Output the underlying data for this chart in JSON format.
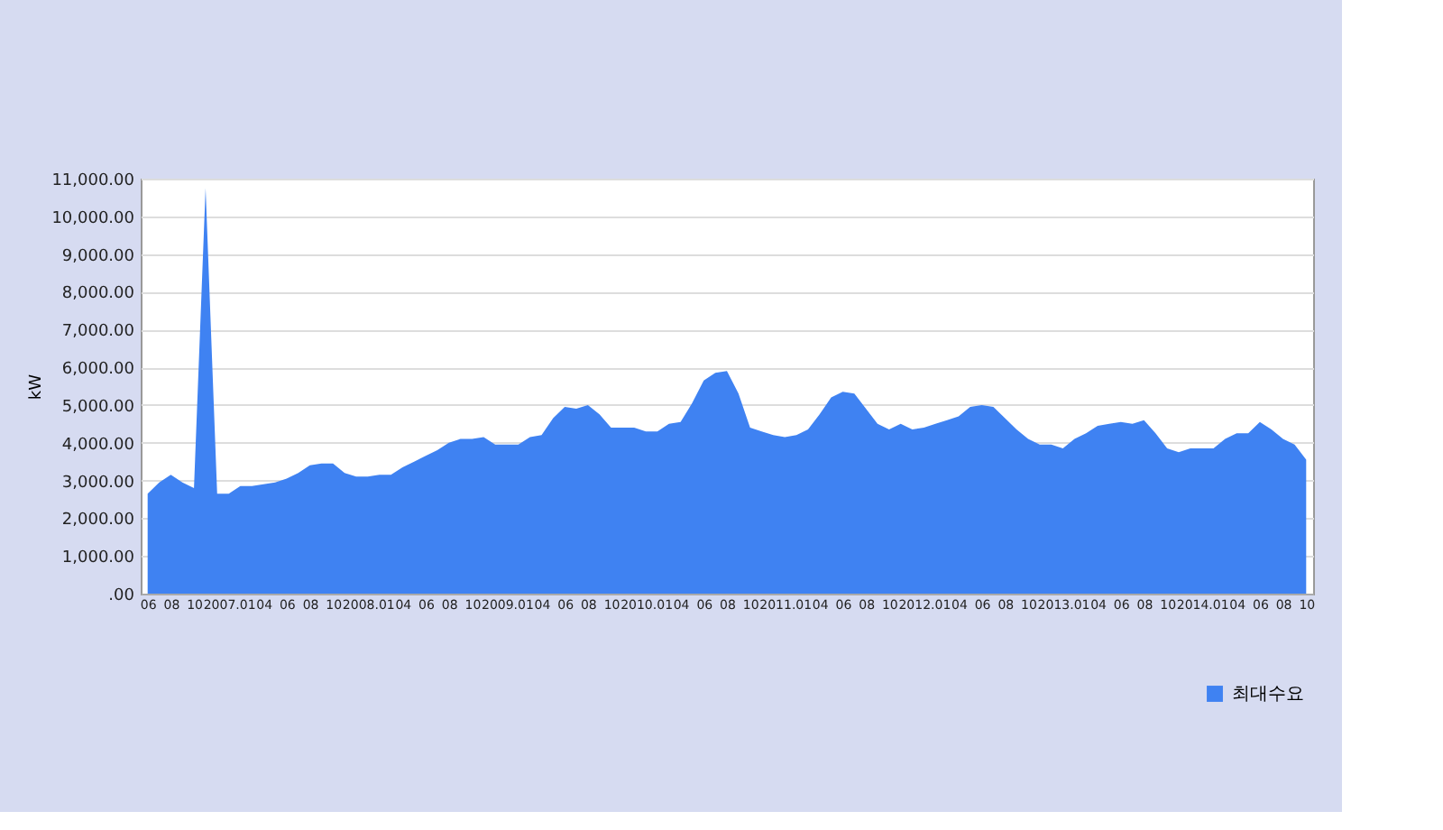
{
  "chart_data": {
    "type": "area",
    "ylabel": "kW",
    "categories": [
      "06",
      null,
      "08",
      null,
      "10",
      null,
      null,
      "2007.01",
      null,
      null,
      "04",
      null,
      "06",
      null,
      "08",
      null,
      "10",
      null,
      null,
      "2008.01",
      null,
      null,
      "04",
      null,
      "06",
      null,
      "08",
      null,
      "10",
      null,
      null,
      "2009.01",
      null,
      null,
      "04",
      null,
      "06",
      null,
      "08",
      null,
      "10",
      null,
      null,
      "2010.01",
      null,
      null,
      "04",
      null,
      "06",
      null,
      "08",
      null,
      "10",
      null,
      null,
      "2011.01",
      null,
      null,
      "04",
      null,
      "06",
      null,
      "08",
      null,
      "10",
      null,
      null,
      "2012.01",
      null,
      null,
      "04",
      null,
      "06",
      null,
      "08",
      null,
      "10",
      null,
      null,
      "2013.01",
      null,
      null,
      "04",
      null,
      "06",
      null,
      "08",
      null,
      "10",
      null,
      null,
      "2014.01",
      null,
      null,
      "04",
      null,
      "06",
      null,
      "08",
      null,
      "10"
    ],
    "series": [
      {
        "name": "최대수요",
        "color": "#3f82f2",
        "values": [
          2650,
          2950,
          3150,
          2950,
          2800,
          10750,
          2650,
          2650,
          2850,
          2850,
          2900,
          2950,
          3050,
          3200,
          3400,
          3450,
          3450,
          3200,
          3100,
          3100,
          3150,
          3150,
          3350,
          3500,
          3650,
          3800,
          4000,
          4100,
          4100,
          4150,
          3950,
          3950,
          3950,
          4150,
          4200,
          4650,
          4950,
          4900,
          5000,
          4750,
          4400,
          4400,
          4400,
          4300,
          4300,
          4500,
          4550,
          5050,
          5650,
          5850,
          5900,
          5300,
          4400,
          4300,
          4200,
          4150,
          4200,
          4350,
          4750,
          5200,
          5350,
          5300,
          4900,
          4500,
          4350,
          4500,
          4350,
          4400,
          4500,
          4600,
          4700,
          4950,
          5000,
          4950,
          4650,
          4350,
          4100,
          3950,
          3950,
          3850,
          4100,
          4250,
          4450,
          4500,
          4550,
          4500,
          4600,
          4250,
          3850,
          3750,
          3850,
          3850,
          3850,
          4100,
          4250,
          4250,
          4550,
          4350,
          4100,
          3950,
          3550
        ]
      }
    ],
    "ylim": [
      0,
      11000
    ],
    "yticks": [
      {
        "value": 0,
        "label": ".00"
      },
      {
        "value": 1000,
        "label": "1,000.00"
      },
      {
        "value": 2000,
        "label": "2,000.00"
      },
      {
        "value": 3000,
        "label": "3,000.00"
      },
      {
        "value": 4000,
        "label": "4,000.00"
      },
      {
        "value": 5000,
        "label": "5,000.00"
      },
      {
        "value": 6000,
        "label": "6,000.00"
      },
      {
        "value": 7000,
        "label": "7,000.00"
      },
      {
        "value": 8000,
        "label": "8,000.00"
      },
      {
        "value": 9000,
        "label": "9,000.00"
      },
      {
        "value": 10000,
        "label": "10,000.00"
      },
      {
        "value": 11000,
        "label": "11,000.00"
      }
    ],
    "grid": "y",
    "legend": "bottom right"
  }
}
